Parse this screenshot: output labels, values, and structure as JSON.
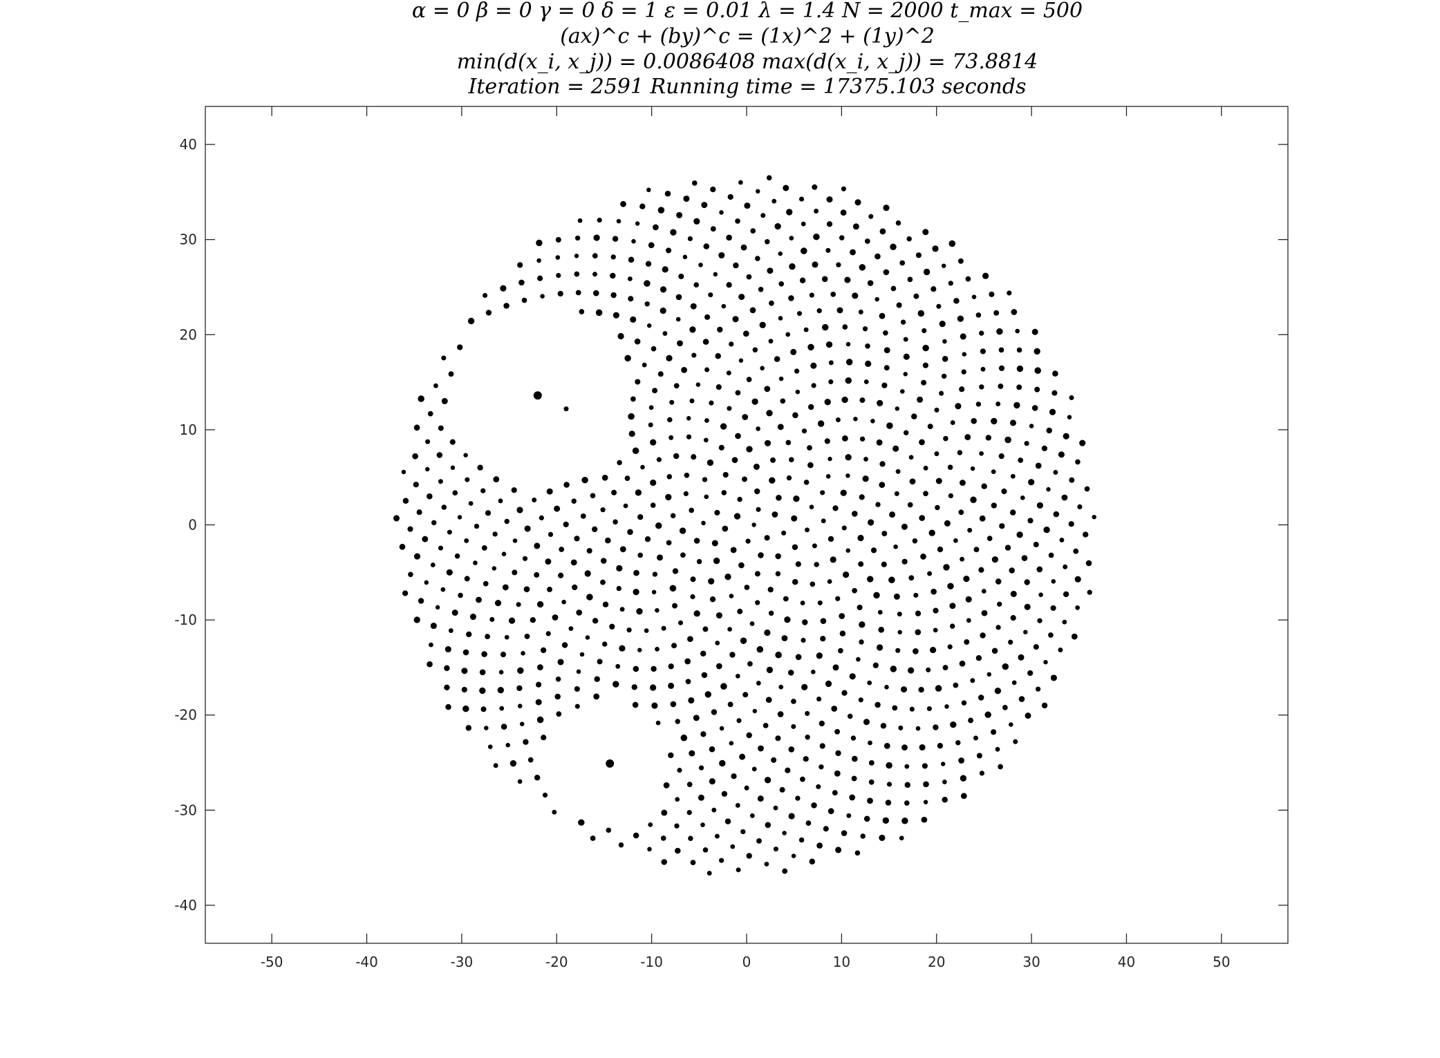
{
  "figure": {
    "title_lines": [
      "α = 0    β = 0    γ = 0    δ = 1    ε = 0.01    λ = 1.4    N = 2000    t_max = 500",
      "(ax)^c + (by)^c = (1x)^2 + (1y)^2",
      "min(d(x_i, x_j)) = 0.0086408     max(d(x_i, x_j)) = 73.8814",
      "Iteration = 2591    Running time = 17375.103 seconds"
    ]
  },
  "chart_data": {
    "type": "scatter",
    "title": "α = 0  β = 0  γ = 0  δ = 1  ε = 0.01  λ = 1.4  N = 2000  t_max = 500",
    "xlabel": "",
    "ylabel": "",
    "xlim": [
      -57,
      57
    ],
    "ylim": [
      -44,
      44
    ],
    "grid": false,
    "legend": "none",
    "xticks": [
      -50,
      -40,
      -30,
      -20,
      -10,
      0,
      10,
      20,
      30,
      40,
      50
    ],
    "yticks": [
      -40,
      -30,
      -20,
      -10,
      0,
      10,
      20,
      30,
      40
    ],
    "xtick_labels": [
      "-50",
      "-40",
      "-30",
      "-20",
      "-10",
      "0",
      "10",
      "20",
      "30",
      "40",
      "50"
    ],
    "ytick_labels": [
      "-40",
      "-30",
      "-20",
      "-10",
      "0",
      "10",
      "20",
      "30",
      "40"
    ],
    "marker_color": "#000000",
    "point_cloud": {
      "description_shape": "disk",
      "center": [
        0,
        0
      ],
      "radius": 36.9,
      "excluded_regions": [
        {
          "center": [
            -21.5,
            13.5
          ],
          "radius": 9.5
        },
        {
          "center": [
            -14.5,
            -25
          ],
          "radius": 6.5
        }
      ]
    },
    "highlight_points": [
      {
        "x": -22.0,
        "y": 13.6
      },
      {
        "x": -14.4,
        "y": -25.1
      },
      {
        "x": -19.0,
        "y": 12.2
      }
    ]
  }
}
